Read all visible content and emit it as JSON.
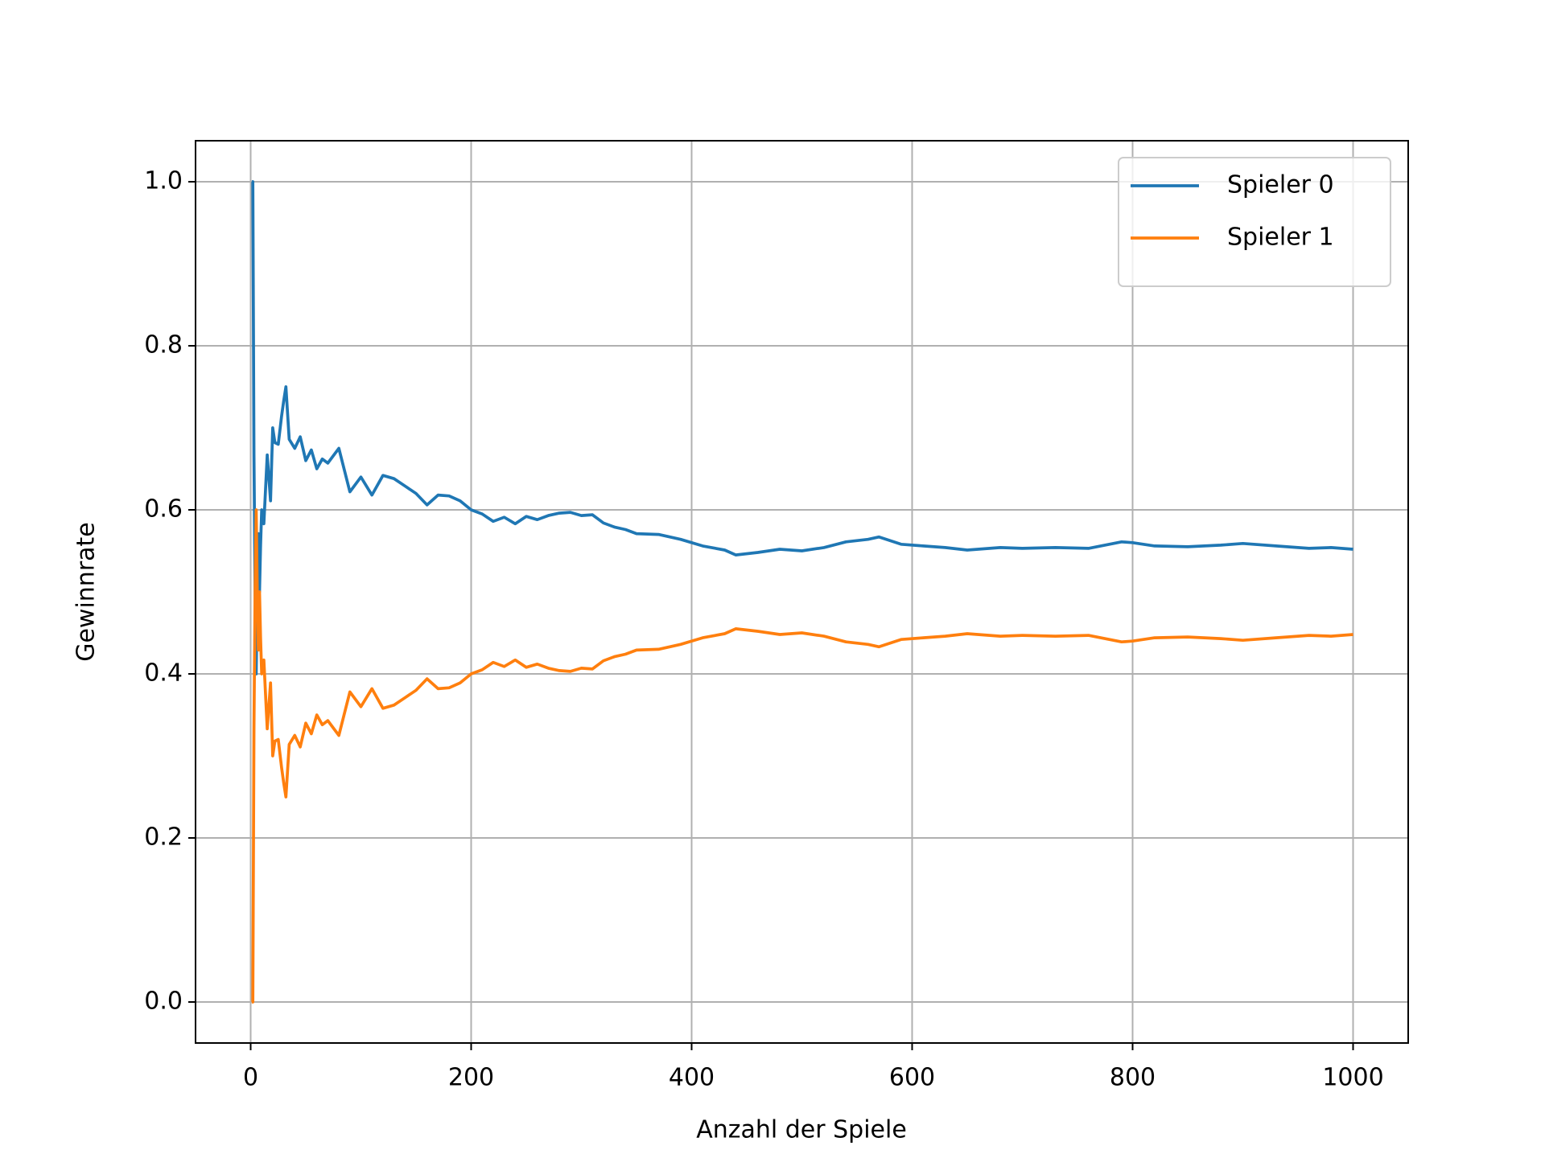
{
  "chart_data": {
    "type": "line",
    "xlabel": "Anzahl der Spiele",
    "ylabel": "Gewinnrate",
    "x": [
      1,
      2,
      3,
      4,
      5,
      6,
      7,
      8,
      9,
      10,
      12,
      15,
      18,
      20,
      22,
      25,
      28,
      30,
      32,
      35,
      40,
      45,
      50,
      55,
      60,
      65,
      70,
      80,
      90,
      100,
      110,
      120,
      130,
      140,
      150,
      160,
      170,
      180,
      190,
      200,
      210,
      220,
      230,
      240,
      250,
      260,
      270,
      280,
      290,
      300,
      310,
      320,
      330,
      340,
      350,
      370,
      390,
      410,
      430,
      440,
      460,
      480,
      500,
      520,
      540,
      560,
      570,
      590,
      610,
      630,
      650,
      680,
      700,
      730,
      760,
      790,
      800,
      820,
      850,
      880,
      900,
      930,
      960,
      980,
      1000
    ],
    "series": [
      {
        "name": "Spieler 0",
        "color": "#1f77b4",
        "values": [
          1,
          1,
          0.667,
          0.5,
          0.4,
          0.5,
          0.571,
          0.5,
          0.556,
          0.6,
          0.583,
          0.667,
          0.611,
          0.7,
          0.682,
          0.68,
          0.714,
          0.733,
          0.75,
          0.686,
          0.675,
          0.689,
          0.66,
          0.673,
          0.65,
          0.662,
          0.657,
          0.675,
          0.622,
          0.64,
          0.618,
          0.642,
          0.638,
          0.629,
          0.62,
          0.606,
          0.618,
          0.617,
          0.611,
          0.6,
          0.595,
          0.586,
          0.591,
          0.583,
          0.592,
          0.588,
          0.593,
          0.596,
          0.597,
          0.593,
          0.594,
          0.584,
          0.579,
          0.576,
          0.571,
          0.57,
          0.564,
          0.556,
          0.551,
          0.545,
          0.548,
          0.552,
          0.55,
          0.554,
          0.561,
          0.564,
          0.567,
          0.558,
          0.556,
          0.554,
          0.551,
          0.554,
          0.553,
          0.554,
          0.553,
          0.561,
          0.56,
          0.556,
          0.555,
          0.557,
          0.559,
          0.556,
          0.553,
          0.554,
          0.552
        ]
      },
      {
        "name": "Spieler 1",
        "color": "#ff7f0e",
        "values": [
          0,
          0,
          0.333,
          0.5,
          0.6,
          0.5,
          0.429,
          0.5,
          0.444,
          0.4,
          0.417,
          0.333,
          0.389,
          0.3,
          0.318,
          0.32,
          0.286,
          0.267,
          0.25,
          0.314,
          0.325,
          0.311,
          0.34,
          0.327,
          0.35,
          0.338,
          0.343,
          0.325,
          0.378,
          0.36,
          0.382,
          0.358,
          0.362,
          0.371,
          0.38,
          0.394,
          0.382,
          0.383,
          0.389,
          0.4,
          0.405,
          0.414,
          0.409,
          0.417,
          0.408,
          0.412,
          0.407,
          0.404,
          0.403,
          0.407,
          0.406,
          0.416,
          0.421,
          0.424,
          0.429,
          0.43,
          0.436,
          0.444,
          0.449,
          0.455,
          0.452,
          0.448,
          0.45,
          0.446,
          0.439,
          0.436,
          0.433,
          0.442,
          0.444,
          0.446,
          0.449,
          0.446,
          0.447,
          0.446,
          0.447,
          0.439,
          0.44,
          0.444,
          0.445,
          0.443,
          0.441,
          0.444,
          0.447,
          0.446,
          0.448
        ]
      }
    ],
    "xlim": [
      -50,
      1050
    ],
    "ylim": [
      -0.05,
      1.05
    ],
    "xticks": [
      0,
      200,
      400,
      600,
      800,
      1000
    ],
    "yticks": [
      {
        "value": 0,
        "label": "0.0"
      },
      0.2,
      0.4,
      0.6,
      0.8,
      {
        "value": 1,
        "label": "1.0"
      }
    ],
    "grid": true,
    "legend": "upper right"
  }
}
